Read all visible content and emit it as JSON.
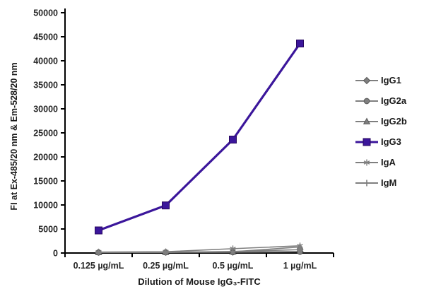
{
  "figure": {
    "background": "#ffffff",
    "axis_color": "#000000",
    "tick_label_color": "#262626"
  },
  "chart_data": {
    "type": "line",
    "title": "",
    "categories": [
      "0.125 µg/mL",
      "0.25 µg/mL",
      "0.5 µg/mL",
      "1 µg/mL"
    ],
    "series": [
      {
        "name": "IgG1",
        "marker": "diamond",
        "color": "#7f7f7f",
        "edge": "#595959",
        "line_width": 1.6,
        "values": [
          150,
          160,
          200,
          320
        ]
      },
      {
        "name": "IgG2a",
        "marker": "circle",
        "color": "#7f7f7f",
        "edge": "#595959",
        "line_width": 1.6,
        "values": [
          120,
          140,
          180,
          260
        ]
      },
      {
        "name": "IgG2b",
        "marker": "triangle",
        "color": "#7f7f7f",
        "edge": "#595959",
        "line_width": 1.6,
        "values": [
          130,
          170,
          260,
          1250
        ]
      },
      {
        "name": "IgG3",
        "marker": "square",
        "color": "#3b169b",
        "edge": "#28075f",
        "line_width": 3.2,
        "values": [
          4700,
          9900,
          23600,
          43600
        ]
      },
      {
        "name": "IgA",
        "marker": "asterisk",
        "color": "#7f7f7f",
        "edge": "#7f7f7f",
        "line_width": 1.6,
        "values": [
          200,
          260,
          900,
          1500
        ]
      },
      {
        "name": "IgM",
        "marker": "plus",
        "color": "#7f7f7f",
        "edge": "#7f7f7f",
        "line_width": 1.6,
        "values": [
          110,
          150,
          320,
          700
        ]
      }
    ],
    "xlabel": "Dilution of Mouse IgG₃-FITC",
    "ylabel": "FI at Ex-485/20 nm & Em-528/20 nm",
    "ylim": [
      0,
      50000
    ],
    "ytick_step": 5000,
    "grid": false,
    "legend_position": "right"
  }
}
